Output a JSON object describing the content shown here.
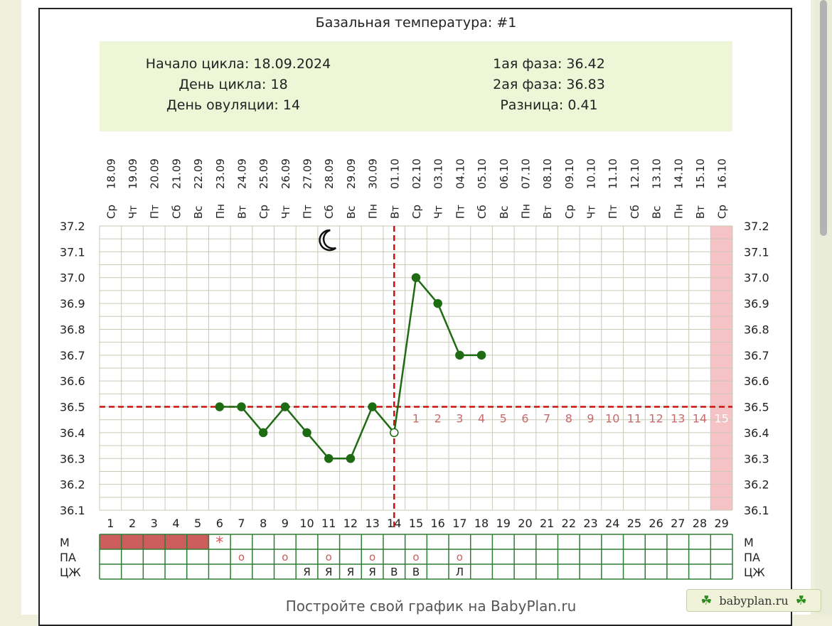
{
  "title": "Базальная температура: #1",
  "info": {
    "cycle_start": "Начало цикла: 18.09.2024",
    "cycle_day": "День цикла: 18",
    "ovulation_day": "День овуляции: 14",
    "phase1": "1ая фаза: 36.42",
    "phase2": "2ая фаза: 36.83",
    "difference": "Разница: 0.41"
  },
  "footer_text": "Постройте свой график на BabyPlan.ru",
  "badge_text": "babyplan.ru",
  "row_labels": [
    "М",
    "ПА",
    "ЦЖ"
  ],
  "colors": {
    "line": "#1e6b14",
    "marker": "#1e6b14",
    "cover_line": "#cc1111",
    "grid": "#c9c9b6",
    "info_bg": "#eef6d8",
    "menses": "#cd5c5c",
    "phase_numbers": "#c96a6a",
    "highlight_column": "#f5c2c6",
    "table_border": "#2e7d32"
  },
  "icons": {
    "moon": "moon-icon",
    "star": "star-icon",
    "clover": "clover-icon"
  },
  "chart_data": {
    "type": "line",
    "title": "Базальная температура: #1",
    "xlabel": "",
    "ylabel": "",
    "ylim": [
      36.1,
      37.2
    ],
    "y_ticks": [
      "37.2",
      "37.1",
      "37.0",
      "36.9",
      "36.8",
      "36.7",
      "36.6",
      "36.5",
      "36.4",
      "36.3",
      "36.2",
      "36.1"
    ],
    "days": [
      "1",
      "2",
      "3",
      "4",
      "5",
      "6",
      "7",
      "8",
      "9",
      "10",
      "11",
      "12",
      "13",
      "14",
      "15",
      "16",
      "17",
      "18",
      "19",
      "20",
      "21",
      "22",
      "23",
      "24",
      "25",
      "26",
      "27",
      "28",
      "29"
    ],
    "weekdays": [
      "Ср",
      "Чт",
      "Пт",
      "Сб",
      "Вс",
      "Пн",
      "Вт",
      "Ср",
      "Чт",
      "Пт",
      "Сб",
      "Вс",
      "Пн",
      "Вт",
      "Ср",
      "Чт",
      "Пт",
      "Сб",
      "Вс",
      "Пн",
      "Вт",
      "Ср",
      "Чт",
      "Пт",
      "Сб",
      "Вс",
      "Пн",
      "Вт",
      "Ср"
    ],
    "dates": [
      "18.09",
      "19.09",
      "20.09",
      "21.09",
      "22.09",
      "23.09",
      "24.09",
      "25.09",
      "26.09",
      "27.09",
      "28.09",
      "29.09",
      "30.09",
      "01.10",
      "02.10",
      "03.10",
      "04.10",
      "05.10",
      "06.10",
      "07.10",
      "08.10",
      "09.10",
      "10.10",
      "11.10",
      "12.10",
      "13.10",
      "14.10",
      "15.10",
      "16.10"
    ],
    "series": [
      {
        "x": [
          6,
          7,
          8,
          9,
          10,
          11,
          12,
          13,
          14,
          15,
          16,
          17,
          18
        ],
        "values": [
          36.5,
          36.5,
          36.4,
          36.5,
          36.4,
          36.3,
          36.3,
          36.5,
          36.4,
          37.0,
          36.9,
          36.7,
          36.7
        ]
      }
    ],
    "hollow_points": [
      14
    ],
    "cover_line": 36.5,
    "ovulation_day": 14,
    "moon_day": 11,
    "highlight_day": 29,
    "phase_numbers": [
      "1",
      "2",
      "3",
      "4",
      "5",
      "6",
      "7",
      "8",
      "9",
      "10",
      "11",
      "12",
      "13",
      "14",
      "15"
    ],
    "phase_numbers_start_day": 15,
    "rows": {
      "menses_days": [
        1,
        2,
        3,
        4,
        5
      ],
      "menses_star_day": 6,
      "pa": [
        {
          "day": 7,
          "mark": "o"
        },
        {
          "day": 9,
          "mark": "o"
        },
        {
          "day": 11,
          "mark": "o"
        },
        {
          "day": 13,
          "mark": "o"
        },
        {
          "day": 15,
          "mark": "o"
        },
        {
          "day": 17,
          "mark": "o"
        }
      ],
      "cm": [
        {
          "day": 10,
          "mark": "Я"
        },
        {
          "day": 11,
          "mark": "Я"
        },
        {
          "day": 12,
          "mark": "Я"
        },
        {
          "day": 13,
          "mark": "Я"
        },
        {
          "day": 14,
          "mark": "В"
        },
        {
          "day": 15,
          "mark": "В"
        },
        {
          "day": 17,
          "mark": "Л"
        }
      ]
    }
  }
}
